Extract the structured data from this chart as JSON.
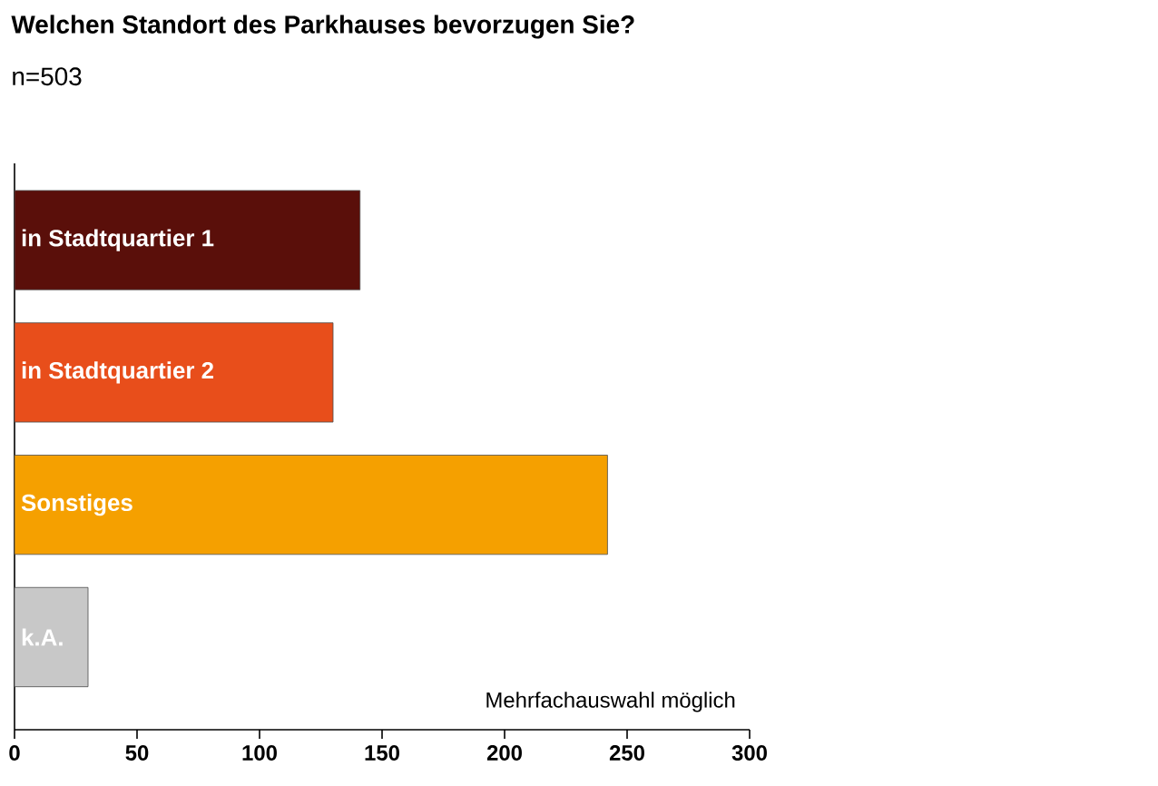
{
  "chart_data": {
    "type": "bar",
    "orientation": "horizontal",
    "title": "Welchen Standort des Parkhauses bevorzugen Sie?",
    "subtitle": "n=503",
    "categories": [
      "in Stadtquartier 1",
      "in Stadtquartier 2",
      "Sonstiges",
      "k.A."
    ],
    "values": [
      141,
      130,
      242,
      30
    ],
    "colors": [
      "#5a0f0a",
      "#e84e1b",
      "#f5a000",
      "#c8c8c8"
    ],
    "xlim": [
      0,
      300
    ],
    "xticks": [
      0,
      50,
      100,
      150,
      200,
      250,
      300
    ],
    "annotations": [
      "Mehrfachauswahl möglich"
    ]
  }
}
